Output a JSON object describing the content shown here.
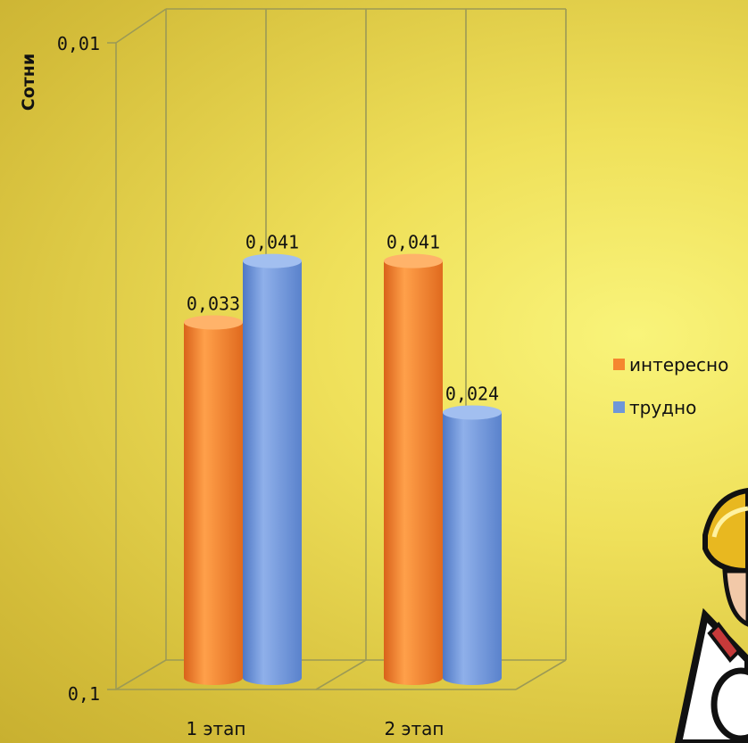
{
  "chart_data": {
    "type": "bar",
    "title": "",
    "ylabel": "Сотни",
    "xlabel": "",
    "scale": "log",
    "ylim": [
      0.01,
      0.1
    ],
    "yticks": [
      "0,01",
      "0,1"
    ],
    "categories": [
      "1 этап",
      "2 этап"
    ],
    "series": [
      {
        "name": "интересно",
        "color": "#f5862f",
        "values": [
          0.033,
          0.041
        ],
        "labels": [
          "0,033",
          "0,041"
        ]
      },
      {
        "name": "трудно",
        "color": "#6f97d8",
        "values": [
          0.041,
          0.024
        ],
        "labels": [
          "0,041",
          "0,024"
        ]
      }
    ],
    "legend": "right",
    "grid": false
  },
  "decoration": {
    "figure": "cartoon-helmet-figure"
  }
}
